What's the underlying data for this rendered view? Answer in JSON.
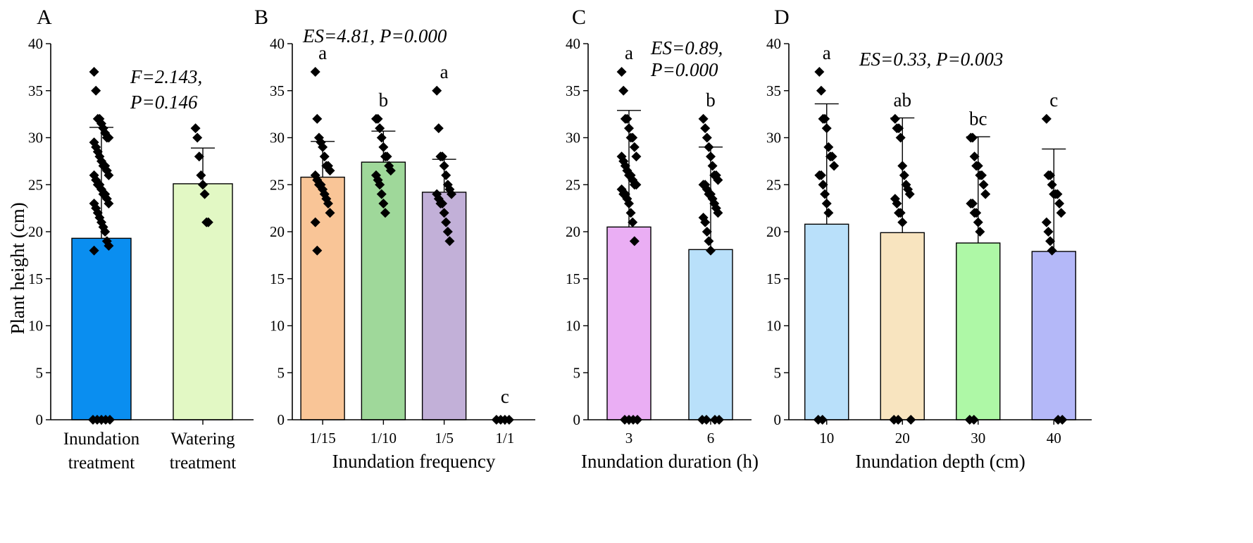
{
  "figure": {
    "ylabel": "Plant height (cm)",
    "colors": {
      "axis": "#000000",
      "points": "#000000"
    }
  },
  "chart_data": [
    {
      "panel": "A",
      "type": "bar",
      "xlabel": "",
      "ylabel": "Plant height (cm)",
      "ylim": [
        0,
        40
      ],
      "yticks": [
        "0",
        "5",
        "10",
        "15",
        "20",
        "25",
        "30",
        "35",
        "40"
      ],
      "categories": [
        [
          "Inundation",
          "treatment"
        ],
        [
          "Watering",
          "treatment"
        ]
      ],
      "values": [
        19.3,
        25.1
      ],
      "errors": [
        11.8,
        3.8
      ],
      "colors": [
        "#0a8ef0",
        "#e2f8c4"
      ],
      "letters": [
        "",
        ""
      ],
      "annotation": [
        "F=2.143,",
        "P=0.146"
      ],
      "points": [
        [
          37,
          35,
          32,
          32,
          31.5,
          31,
          30.5,
          30,
          30,
          29.5,
          29,
          28.5,
          28,
          27.5,
          27,
          27,
          26.5,
          26,
          26,
          25.5,
          25,
          25,
          24.5,
          24,
          24,
          23.5,
          23,
          23,
          22.5,
          22,
          21.5,
          21,
          20.5,
          20,
          19,
          18.5,
          18,
          0,
          0,
          0,
          0,
          0
        ],
        [
          31,
          30,
          28,
          26,
          25,
          24,
          21,
          21
        ]
      ]
    },
    {
      "panel": "B",
      "type": "bar",
      "xlabel": "Inundation frequency",
      "ylim": [
        0,
        40
      ],
      "yticks": [
        "0",
        "5",
        "10",
        "15",
        "20",
        "25",
        "30",
        "35",
        "40"
      ],
      "categories": [
        [
          "1/15"
        ],
        [
          "1/10"
        ],
        [
          "1/5"
        ],
        [
          "1/1"
        ]
      ],
      "values": [
        25.8,
        27.4,
        24.2,
        0
      ],
      "errors": [
        3.8,
        3.3,
        3.5,
        0
      ],
      "colors": [
        "#f9c597",
        "#9fd89a",
        "#c2b0d8",
        "#ffffff"
      ],
      "letters": [
        "a",
        "b",
        "a",
        "c"
      ],
      "annotation": [
        "ES=4.81, P=0.000"
      ],
      "points": [
        [
          37,
          32,
          30,
          29.5,
          29,
          28,
          27,
          27,
          26.5,
          26,
          25.5,
          25,
          25,
          24.5,
          24,
          23.5,
          23,
          22,
          21,
          18
        ],
        [
          32,
          32,
          31,
          30,
          29,
          28,
          28,
          27,
          26.5,
          26,
          25.5,
          25,
          24,
          23,
          22
        ],
        [
          35,
          31,
          28,
          28,
          27,
          26,
          25,
          24.5,
          24,
          24,
          23.5,
          23,
          23,
          22,
          21,
          20,
          19
        ],
        [
          0,
          0,
          0,
          0
        ]
      ]
    },
    {
      "panel": "C",
      "type": "bar",
      "xlabel": "Inundation duration (h)",
      "ylim": [
        0,
        40
      ],
      "yticks": [
        "0",
        "5",
        "10",
        "15",
        "20",
        "25",
        "30",
        "35",
        "40"
      ],
      "categories": [
        [
          "3"
        ],
        [
          "6"
        ]
      ],
      "values": [
        20.5,
        18.1
      ],
      "errors": [
        12.4,
        10.9
      ],
      "colors": [
        "#eaaef4",
        "#b9e0fa"
      ],
      "letters": [
        "a",
        "b"
      ],
      "annotation": [
        "ES=0.89,",
        "P=0.000"
      ],
      "points": [
        [
          37,
          35,
          32,
          32,
          31,
          30,
          30,
          29,
          28,
          28,
          27.5,
          27,
          26.5,
          26,
          26,
          25.5,
          25,
          25,
          24.5,
          24,
          24,
          23.5,
          23,
          22,
          21,
          19,
          0,
          0,
          0,
          0
        ],
        [
          32,
          31,
          30,
          29,
          28,
          27,
          26,
          26,
          25.5,
          25,
          25,
          24.5,
          24,
          24,
          23.5,
          23,
          22.5,
          22,
          21.5,
          21,
          20,
          19,
          18,
          0,
          0,
          0,
          0
        ]
      ]
    },
    {
      "panel": "D",
      "type": "bar",
      "xlabel": "Inundation depth (cm)",
      "ylim": [
        0,
        40
      ],
      "yticks": [
        "0",
        "5",
        "10",
        "15",
        "20",
        "25",
        "30",
        "35",
        "40"
      ],
      "categories": [
        [
          "10"
        ],
        [
          "20"
        ],
        [
          "30"
        ],
        [
          "40"
        ]
      ],
      "values": [
        20.8,
        19.9,
        18.8,
        17.9
      ],
      "errors": [
        12.8,
        12.2,
        11.3,
        10.9
      ],
      "colors": [
        "#b9e0fa",
        "#f8e4bf",
        "#aef8a6",
        "#b4b8f8"
      ],
      "letters": [
        "a",
        "ab",
        "bc",
        "c"
      ],
      "annotation": [
        "ES=0.33, P=0.003"
      ],
      "points": [
        [
          37,
          35,
          32,
          32,
          31,
          29,
          28,
          28,
          27,
          26,
          26,
          25,
          24,
          23,
          22,
          0,
          0
        ],
        [
          32,
          31,
          31,
          30,
          27,
          26,
          25,
          24.5,
          24,
          23.5,
          23,
          22,
          22,
          21,
          0,
          0,
          0
        ],
        [
          30,
          30,
          28,
          27,
          27,
          26,
          26,
          25,
          24,
          23,
          23,
          22,
          22,
          21,
          20,
          0,
          0
        ],
        [
          32,
          26,
          26,
          25,
          24,
          24,
          24,
          23,
          22,
          21,
          20,
          19,
          18,
          0,
          0
        ]
      ]
    }
  ]
}
